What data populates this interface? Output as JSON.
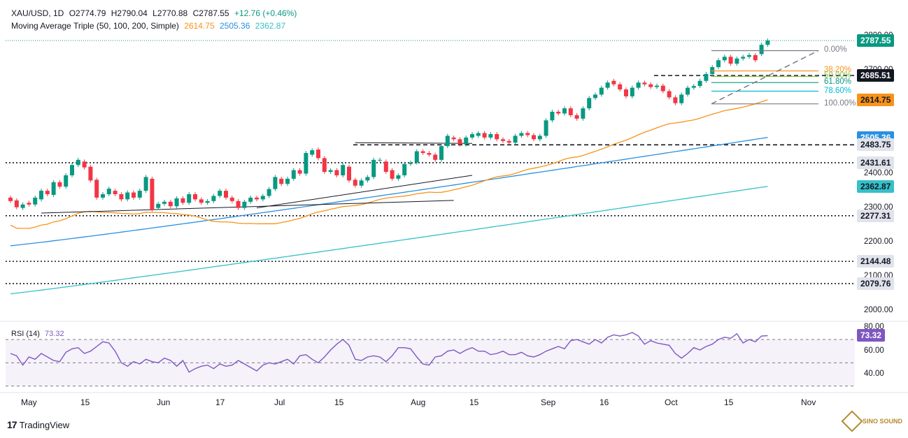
{
  "header": {
    "symbol": "XAU/USD, 1D",
    "open": "O2774.79",
    "high": "H2790.04",
    "low": "L2770.88",
    "close": "C2787.55",
    "change": "+12.76 (+0.46%)",
    "ma_label": "Moving Average Triple (50, 100, 200, Simple)",
    "ma50": "2614.75",
    "ma100": "2505.36",
    "ma200": "2362.87"
  },
  "rsi_label": "RSI (14)",
  "rsi_value": "73.32",
  "branding": {
    "name": "TradingView",
    "watermark": "SINO SOUND"
  },
  "colors": {
    "up": "#089981",
    "down": "#f23645",
    "ma50": "#f7931a",
    "ma100": "#2b8fe0",
    "ma200": "#36c0c8",
    "rsi": "#7e57c2"
  },
  "chart_data": [
    {
      "type": "candlestick",
      "title": "XAU/USD, 1D",
      "price_ticks": [
        "2800.00",
        "2700.00",
        "2600.00",
        "2400.00",
        "2300.00",
        "2200.00",
        "2100.00",
        "2000.00"
      ],
      "x_ticks": [
        "May",
        "15",
        "Jun",
        "17",
        "Jul",
        "15",
        "Aug",
        "15",
        "Sep",
        "16",
        "Oct",
        "15",
        "Nov"
      ],
      "ylim": [
        1980,
        2820
      ],
      "candles": [
        {
          "o": 2330,
          "c": 2320
        },
        {
          "o": 2322,
          "c": 2302
        },
        {
          "o": 2300,
          "c": 2310
        },
        {
          "o": 2315,
          "c": 2310
        },
        {
          "o": 2310,
          "c": 2330
        },
        {
          "o": 2325,
          "c": 2350
        },
        {
          "o": 2350,
          "c": 2340
        },
        {
          "o": 2338,
          "c": 2375
        },
        {
          "o": 2375,
          "c": 2362
        },
        {
          "o": 2362,
          "c": 2395
        },
        {
          "o": 2395,
          "c": 2425
        },
        {
          "o": 2425,
          "c": 2440
        },
        {
          "o": 2435,
          "c": 2418
        },
        {
          "o": 2420,
          "c": 2380
        },
        {
          "o": 2382,
          "c": 2330
        },
        {
          "o": 2330,
          "c": 2340
        },
        {
          "o": 2340,
          "c": 2356
        },
        {
          "o": 2350,
          "c": 2340
        },
        {
          "o": 2340,
          "c": 2325
        },
        {
          "o": 2325,
          "c": 2345
        },
        {
          "o": 2345,
          "c": 2330
        },
        {
          "o": 2330,
          "c": 2350
        },
        {
          "o": 2350,
          "c": 2390
        },
        {
          "o": 2385,
          "c": 2295
        },
        {
          "o": 2300,
          "c": 2312
        },
        {
          "o": 2312,
          "c": 2318
        },
        {
          "o": 2318,
          "c": 2305
        },
        {
          "o": 2305,
          "c": 2328
        },
        {
          "o": 2328,
          "c": 2315
        },
        {
          "o": 2315,
          "c": 2340
        },
        {
          "o": 2340,
          "c": 2325
        },
        {
          "o": 2325,
          "c": 2315
        },
        {
          "o": 2315,
          "c": 2320
        },
        {
          "o": 2320,
          "c": 2335
        },
        {
          "o": 2335,
          "c": 2350
        },
        {
          "o": 2350,
          "c": 2330
        },
        {
          "o": 2330,
          "c": 2320
        },
        {
          "o": 2320,
          "c": 2300
        },
        {
          "o": 2300,
          "c": 2318
        },
        {
          "o": 2318,
          "c": 2330
        },
        {
          "o": 2330,
          "c": 2325
        },
        {
          "o": 2325,
          "c": 2335
        },
        {
          "o": 2335,
          "c": 2355
        },
        {
          "o": 2355,
          "c": 2390
        },
        {
          "o": 2385,
          "c": 2370
        },
        {
          "o": 2370,
          "c": 2385
        },
        {
          "o": 2385,
          "c": 2410
        },
        {
          "o": 2410,
          "c": 2400
        },
        {
          "o": 2400,
          "c": 2460
        },
        {
          "o": 2455,
          "c": 2468
        },
        {
          "o": 2470,
          "c": 2445
        },
        {
          "o": 2445,
          "c": 2405
        },
        {
          "o": 2405,
          "c": 2410
        },
        {
          "o": 2410,
          "c": 2395
        },
        {
          "o": 2395,
          "c": 2425
        },
        {
          "o": 2420,
          "c": 2380
        },
        {
          "o": 2382,
          "c": 2365
        },
        {
          "o": 2365,
          "c": 2380
        },
        {
          "o": 2380,
          "c": 2390
        },
        {
          "o": 2390,
          "c": 2440
        },
        {
          "o": 2440,
          "c": 2440
        },
        {
          "o": 2435,
          "c": 2405
        },
        {
          "o": 2410,
          "c": 2385
        },
        {
          "o": 2385,
          "c": 2395
        },
        {
          "o": 2395,
          "c": 2428
        },
        {
          "o": 2428,
          "c": 2432
        },
        {
          "o": 2432,
          "c": 2465
        },
        {
          "o": 2465,
          "c": 2460
        },
        {
          "o": 2460,
          "c": 2455
        },
        {
          "o": 2455,
          "c": 2440
        },
        {
          "o": 2440,
          "c": 2480
        },
        {
          "o": 2480,
          "c": 2510
        },
        {
          "o": 2505,
          "c": 2500
        },
        {
          "o": 2500,
          "c": 2485
        },
        {
          "o": 2485,
          "c": 2505
        },
        {
          "o": 2505,
          "c": 2515
        },
        {
          "o": 2510,
          "c": 2518
        },
        {
          "o": 2518,
          "c": 2505
        },
        {
          "o": 2505,
          "c": 2515
        },
        {
          "o": 2515,
          "c": 2500
        },
        {
          "o": 2500,
          "c": 2495
        },
        {
          "o": 2495,
          "c": 2490
        },
        {
          "o": 2490,
          "c": 2510
        },
        {
          "o": 2510,
          "c": 2518
        },
        {
          "o": 2518,
          "c": 2512
        },
        {
          "o": 2512,
          "c": 2500
        },
        {
          "o": 2500,
          "c": 2510
        },
        {
          "o": 2510,
          "c": 2555
        },
        {
          "o": 2555,
          "c": 2580
        },
        {
          "o": 2580,
          "c": 2575
        },
        {
          "o": 2575,
          "c": 2590
        },
        {
          "o": 2590,
          "c": 2570
        },
        {
          "o": 2570,
          "c": 2560
        },
        {
          "o": 2560,
          "c": 2590
        },
        {
          "o": 2590,
          "c": 2620
        },
        {
          "o": 2620,
          "c": 2630
        },
        {
          "o": 2630,
          "c": 2650
        },
        {
          "o": 2650,
          "c": 2665
        },
        {
          "o": 2670,
          "c": 2660
        },
        {
          "o": 2660,
          "c": 2645
        },
        {
          "o": 2645,
          "c": 2625
        },
        {
          "o": 2625,
          "c": 2650
        },
        {
          "o": 2650,
          "c": 2665
        },
        {
          "o": 2665,
          "c": 2660
        },
        {
          "o": 2660,
          "c": 2652
        },
        {
          "o": 2652,
          "c": 2656
        },
        {
          "o": 2656,
          "c": 2640
        },
        {
          "o": 2640,
          "c": 2622
        },
        {
          "o": 2622,
          "c": 2605
        },
        {
          "o": 2605,
          "c": 2630
        },
        {
          "o": 2630,
          "c": 2650
        },
        {
          "o": 2650,
          "c": 2655
        },
        {
          "o": 2655,
          "c": 2670
        },
        {
          "o": 2670,
          "c": 2690
        },
        {
          "o": 2690,
          "c": 2710
        },
        {
          "o": 2710,
          "c": 2730
        },
        {
          "o": 2730,
          "c": 2740
        },
        {
          "o": 2740,
          "c": 2720
        },
        {
          "o": 2720,
          "c": 2735
        },
        {
          "o": 2735,
          "c": 2740
        },
        {
          "o": 2740,
          "c": 2745
        },
        {
          "o": 2745,
          "c": 2730
        },
        {
          "o": 2748,
          "c": 2775
        },
        {
          "o": 2775,
          "c": 2787.55
        }
      ],
      "horizontal_levels": [
        {
          "price": 2685.51,
          "style": "dashed"
        },
        {
          "price": 2483.75,
          "style": "dashed"
        },
        {
          "price": 2431.61,
          "style": "dotted"
        },
        {
          "price": 2277.31,
          "style": "dotted"
        },
        {
          "price": 2144.48,
          "style": "dotted"
        },
        {
          "price": 2079.76,
          "style": "dotted"
        }
      ],
      "price_tags": [
        {
          "label": "2787.55",
          "price": 2787.55,
          "bg": "#089981",
          "fg": "#ffffff"
        },
        {
          "label": "2685.51",
          "price": 2685.51,
          "bg": "#131722",
          "fg": "#ffffff"
        },
        {
          "label": "2614.75",
          "price": 2614.75,
          "bg": "#f7931a",
          "fg": "#131722"
        },
        {
          "label": "2505.36",
          "price": 2505.36,
          "bg": "#2b8fe0",
          "fg": "#ffffff"
        },
        {
          "label": "2483.75",
          "price": 2483.75,
          "bg": "#e0e3eb",
          "fg": "#131722"
        },
        {
          "label": "2431.61",
          "price": 2431.61,
          "bg": "#e0e3eb",
          "fg": "#131722"
        },
        {
          "label": "2362.87",
          "price": 2362.87,
          "bg": "#36c0c8",
          "fg": "#131722"
        },
        {
          "label": "2277.31",
          "price": 2277.31,
          "bg": "#e0e3eb",
          "fg": "#131722"
        },
        {
          "label": "2144.48",
          "price": 2144.48,
          "bg": "#e0e3eb",
          "fg": "#131722"
        },
        {
          "label": "2079.76",
          "price": 2079.76,
          "bg": "#e0e3eb",
          "fg": "#131722"
        }
      ],
      "fibonacci": [
        {
          "label": "0.00%",
          "price": 2758,
          "color": "#787b86"
        },
        {
          "label": "38.20%",
          "price": 2699,
          "color": "#f7931a"
        },
        {
          "label": "50.00%",
          "price": 2683,
          "color": "#8bc34a"
        },
        {
          "label": "61.80%",
          "price": 2665,
          "color": "#089981"
        },
        {
          "label": "78.60%",
          "price": 2640,
          "color": "#00bcd4"
        },
        {
          "label": "100.00%",
          "price": 2603,
          "color": "#787b86"
        }
      ]
    },
    {
      "type": "line",
      "title": "RSI (14)",
      "ticks": [
        "80.00",
        "60.00",
        "40.00"
      ],
      "ylim": [
        28,
        82
      ],
      "levels": [
        70,
        50,
        30
      ],
      "values": [
        58,
        56,
        48,
        55,
        53,
        58,
        55,
        52,
        51,
        59,
        62,
        63,
        58,
        60,
        64,
        68,
        67,
        60,
        50,
        47,
        51,
        49,
        53,
        51,
        50,
        54,
        52,
        47,
        52,
        42,
        45,
        47,
        48,
        45,
        49,
        47,
        48,
        52,
        49,
        46,
        43,
        48,
        50,
        49,
        51,
        53,
        49,
        56,
        57,
        53,
        50,
        55,
        61,
        66,
        70,
        65,
        53,
        52,
        55,
        56,
        55,
        51,
        56,
        63,
        63,
        62,
        55,
        49,
        48,
        55,
        56,
        60,
        61,
        58,
        61,
        63,
        60,
        60,
        57,
        58,
        60,
        57,
        57,
        59,
        56,
        55,
        57,
        60,
        62,
        64,
        62,
        69,
        70,
        68,
        66,
        70,
        67,
        72,
        74,
        73,
        74,
        76,
        73,
        66,
        69,
        67,
        66,
        65,
        58,
        54,
        58,
        63,
        61,
        64,
        66,
        70,
        72,
        71,
        75,
        67,
        70,
        68,
        73,
        73.32
      ]
    }
  ]
}
